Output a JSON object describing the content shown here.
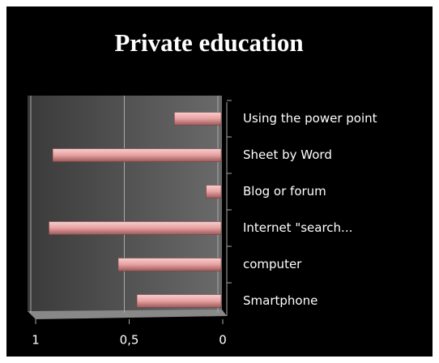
{
  "chart_data": {
    "type": "bar",
    "orientation": "horizontal",
    "title": "Private education",
    "categories": [
      "Using the power point",
      "Sheet by Word",
      "Blog or forum",
      "Internet \"search...",
      "computer",
      "Smartphone"
    ],
    "values": [
      0.25,
      0.9,
      0.08,
      0.92,
      0.55,
      0.45
    ],
    "color": "#e8a0a0",
    "xlim": [
      0,
      1
    ],
    "xticks": [
      {
        "value": 1,
        "label": "1"
      },
      {
        "value": 0.5,
        "label": "0,5"
      },
      {
        "value": 0,
        "label": "0"
      }
    ],
    "x_reversed": true,
    "grid": true
  }
}
